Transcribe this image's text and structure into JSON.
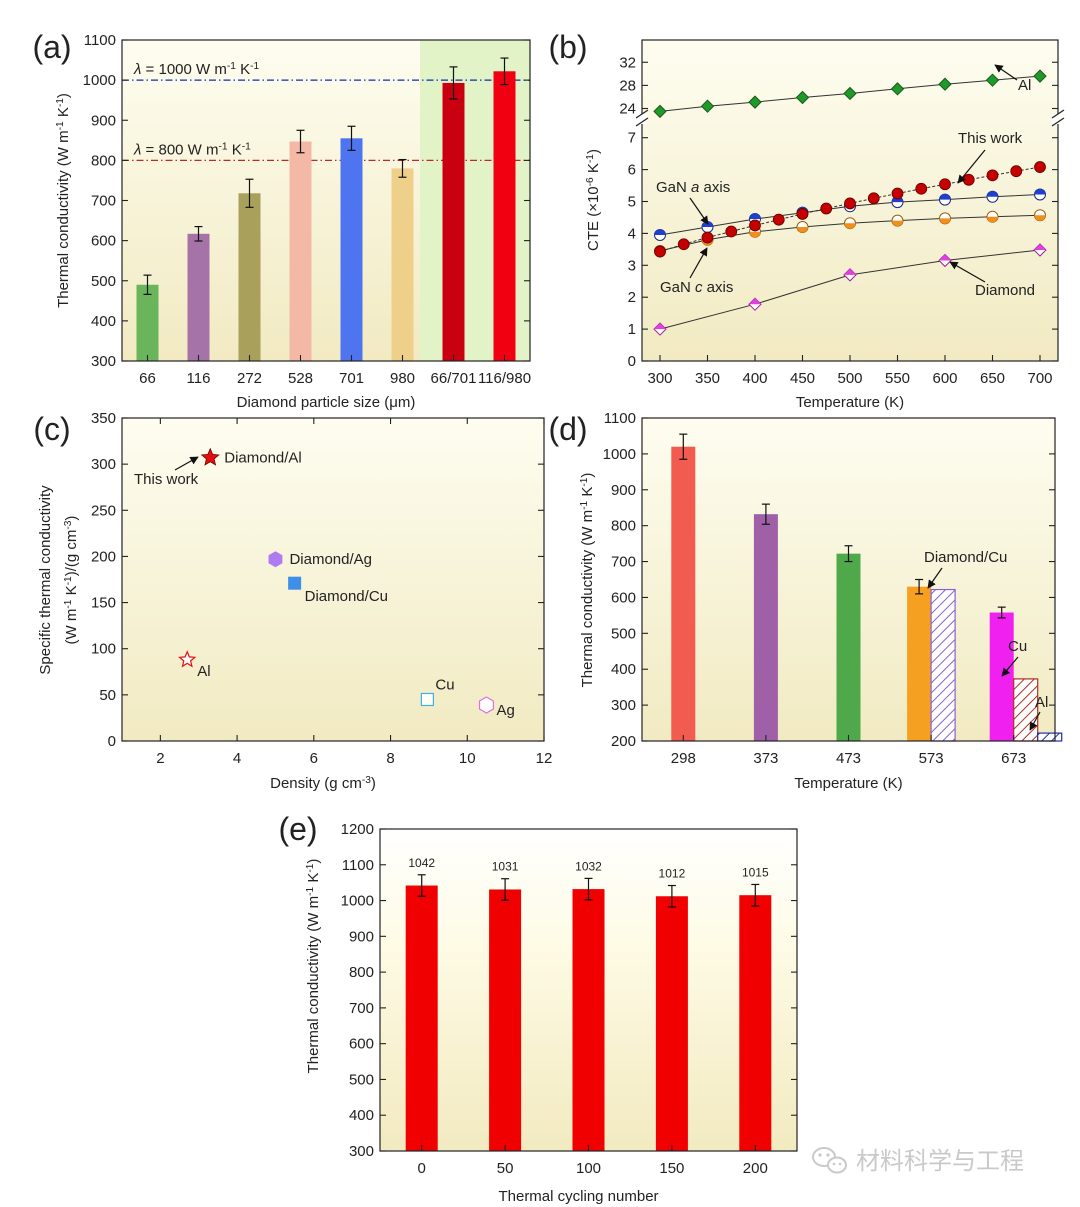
{
  "watermark": "材料科学与工程",
  "colors": {
    "red": "#e8000b",
    "darkred": "#c00000",
    "axis": "#222222",
    "bg_top": "#fdfbe4",
    "bg_bottom": "#f2ecc4",
    "green_band": "#e2f3c8"
  },
  "chart_data": [
    {
      "panel": "(a)",
      "type": "bar",
      "xlabel": "Diamond particle size (μm)",
      "ylabel": "Thermal conductivity (W m-1 K-1)",
      "ylabel_parts": [
        "Thermal conductivity (W m",
        "-1",
        " K",
        "-1",
        ")"
      ],
      "ylim": [
        300,
        1100
      ],
      "yticks": [
        "300",
        "400",
        "500",
        "600",
        "700",
        "800",
        "900",
        "1000",
        "1100"
      ],
      "categories": [
        "66",
        "116",
        "272",
        "528",
        "701",
        "980",
        "66/701",
        "116/980"
      ],
      "values": [
        490,
        617,
        718,
        847,
        855,
        780,
        993,
        1022
      ],
      "errors": [
        24,
        18,
        35,
        28,
        30,
        22,
        40,
        33
      ],
      "bar_colors": [
        "#6ab55a",
        "#a673a8",
        "#a9a05b",
        "#f4b9a6",
        "#4f74ef",
        "#efd08b",
        "#c80010",
        "#f00010"
      ],
      "reference_lines": [
        {
          "value": 1000,
          "label_parts": [
            "λ",
            " = 1000 W m",
            "-1",
            " K",
            "-1"
          ],
          "color": "#0a2fa8"
        },
        {
          "value": 800,
          "label_parts": [
            "λ",
            " = 800 W m",
            "-1",
            " K",
            "-1"
          ],
          "color": "#c0282a"
        }
      ]
    },
    {
      "panel": "(b)",
      "type": "line",
      "xlabel": "Temperature (K)",
      "ylabel_parts": [
        "CTE (×10",
        "-6",
        " K",
        "-1",
        ")"
      ],
      "x_ticks": [
        "300",
        "350",
        "400",
        "450",
        "500",
        "550",
        "600",
        "650",
        "700"
      ],
      "yticks_lower": [
        "0",
        "1",
        "2",
        "3",
        "4",
        "5",
        "6",
        "7"
      ],
      "yticks_upper": [
        "24",
        "28",
        "32"
      ],
      "y_break": [
        7.5,
        24
      ],
      "series": [
        {
          "name": "Al",
          "x": [
            300,
            350,
            400,
            450,
            500,
            550,
            600,
            650,
            700
          ],
          "values": [
            23.5,
            24.4,
            25.1,
            25.9,
            26.6,
            27.4,
            28.2,
            28.9,
            29.6
          ],
          "color": "#1f9a2a"
        },
        {
          "name": "This work",
          "x": [
            300,
            325,
            350,
            375,
            400,
            425,
            450,
            475,
            500,
            525,
            550,
            575,
            600,
            625,
            650,
            675,
            700
          ],
          "values": [
            3.43,
            3.66,
            3.87,
            4.06,
            4.25,
            4.43,
            4.61,
            4.78,
            4.94,
            5.1,
            5.25,
            5.4,
            5.54,
            5.68,
            5.82,
            5.95,
            6.08
          ],
          "color": "#c40000"
        },
        {
          "name": "GaN a axis",
          "x": [
            300,
            350,
            400,
            450,
            500,
            550,
            600,
            650,
            700
          ],
          "values": [
            3.95,
            4.2,
            4.45,
            4.65,
            4.85,
            4.98,
            5.06,
            5.15,
            5.22
          ],
          "color": "#1e3fd0"
        },
        {
          "name": "GaN c axis",
          "x": [
            300,
            350,
            400,
            450,
            500,
            550,
            600,
            650,
            700
          ],
          "values": [
            3.45,
            3.8,
            4.05,
            4.2,
            4.32,
            4.4,
            4.47,
            4.52,
            4.57
          ],
          "color": "#f0901a"
        },
        {
          "name": "Diamond",
          "x": [
            300,
            400,
            500,
            600,
            700
          ],
          "values": [
            1.0,
            1.78,
            2.7,
            3.15,
            3.48
          ],
          "color": "#e040e0"
        }
      ],
      "annotations": [
        "This work",
        "GaN a axis",
        "GaN c axis",
        "Diamond",
        "Al"
      ],
      "annotation_parts": {
        "gan_a": [
          "GaN ",
          "a",
          " axis"
        ],
        "gan_c": [
          "GaN ",
          "c",
          " axis"
        ]
      }
    },
    {
      "panel": "(c)",
      "type": "scatter",
      "xlabel_parts": [
        "Density (g cm",
        "-3",
        ")"
      ],
      "ylabel_line1": "Specific thermal conductivity",
      "ylabel_line2_parts": [
        "(W m",
        "-1",
        " K",
        "-1",
        ")/(g cm",
        "-3",
        ")"
      ],
      "xlim": [
        1,
        12
      ],
      "ylim": [
        0,
        350
      ],
      "xticks": [
        "2",
        "4",
        "6",
        "8",
        "10",
        "12"
      ],
      "yticks": [
        "0",
        "50",
        "100",
        "150",
        "200",
        "250",
        "300",
        "350"
      ],
      "points": [
        {
          "name": "Diamond/Al",
          "x": 3.3,
          "y": 307,
          "marker": "star-filled",
          "color": "#e01010"
        },
        {
          "name": "Diamond/Ag",
          "x": 5.0,
          "y": 197,
          "marker": "hexagon-filled",
          "color": "#b07af0"
        },
        {
          "name": "Diamond/Cu",
          "x": 5.5,
          "y": 171,
          "marker": "square-filled",
          "color": "#3f8ee8"
        },
        {
          "name": "Al",
          "x": 2.7,
          "y": 88,
          "marker": "star-open",
          "color": "#e01010"
        },
        {
          "name": "Cu",
          "x": 8.96,
          "y": 45,
          "marker": "square-open",
          "color": "#3fb0e8"
        },
        {
          "name": "Ag",
          "x": 10.5,
          "y": 39,
          "marker": "hexagon-open",
          "color": "#e070e0"
        }
      ],
      "annotation": "This work"
    },
    {
      "panel": "(d)",
      "type": "bar",
      "xlabel": "Temperature (K)",
      "ylabel_parts": [
        "Thermal conductivity (W m",
        "-1",
        " K",
        "-1",
        ")"
      ],
      "ylim": [
        200,
        1100
      ],
      "yticks": [
        "200",
        "300",
        "400",
        "500",
        "600",
        "700",
        "800",
        "900",
        "1000",
        "1100"
      ],
      "categories": [
        "298",
        "373",
        "473",
        "573",
        "673"
      ],
      "series": [
        {
          "name": "This work",
          "values": [
            1020,
            832,
            722,
            630,
            558
          ],
          "errors": [
            35,
            28,
            22,
            20,
            15
          ],
          "colors": [
            "#f25b50",
            "#a060a8",
            "#4fa84a",
            "#f5a020",
            "#f020f0"
          ]
        },
        {
          "name": "Diamond/Cu",
          "category": "573",
          "value": 622,
          "pattern": "hatch",
          "color": "#8a60d0"
        },
        {
          "name": "Cu",
          "category": "673",
          "value": 373,
          "pattern": "hatch",
          "color": "#b03020"
        },
        {
          "name": "Al",
          "category": "673",
          "value": 222,
          "pattern": "hatch",
          "color": "#2030a0"
        }
      ],
      "annotations": [
        "Diamond/Cu",
        "Cu",
        "Al"
      ]
    },
    {
      "panel": "(e)",
      "type": "bar",
      "xlabel": "Thermal cycling number",
      "ylabel_parts": [
        "Thermal conductivity (W m",
        "-1",
        " K",
        "-1",
        ")"
      ],
      "ylim": [
        300,
        1200
      ],
      "yticks": [
        "300",
        "400",
        "500",
        "600",
        "700",
        "800",
        "900",
        "1000",
        "1100",
        "1200"
      ],
      "categories": [
        "0",
        "50",
        "100",
        "150",
        "200"
      ],
      "values": [
        1042,
        1031,
        1032,
        1012,
        1015
      ],
      "value_labels": [
        "1042",
        "1031",
        "1032",
        "1012",
        "1015"
      ],
      "errors": [
        30,
        30,
        30,
        30,
        30
      ],
      "bar_color": "#f00000"
    }
  ]
}
